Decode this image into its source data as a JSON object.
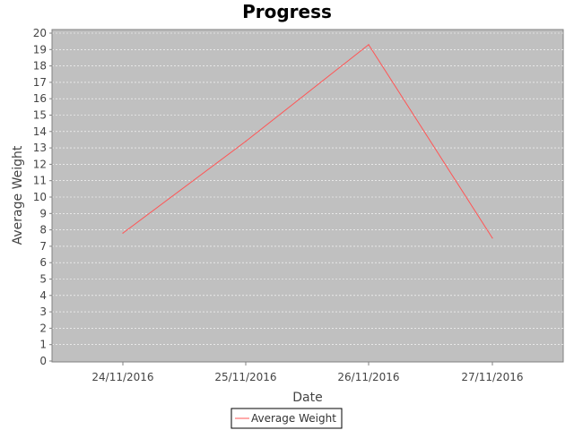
{
  "chart_data": {
    "type": "line",
    "title": "Progress",
    "xlabel": "Date",
    "ylabel": "Average Weight",
    "categories": [
      "24/11/2016",
      "25/11/2016",
      "26/11/2016",
      "27/11/2016"
    ],
    "series": [
      {
        "name": "Average Weight",
        "color": "#ff5555",
        "values": [
          7.8,
          13.4,
          19.3,
          7.5
        ]
      }
    ],
    "ylim": [
      0,
      20
    ],
    "yticks": [
      0,
      1,
      2,
      3,
      4,
      5,
      6,
      7,
      8,
      9,
      10,
      11,
      12,
      13,
      14,
      15,
      16,
      17,
      18,
      19,
      20
    ],
    "grid": true,
    "plot_background": "#c0c0c0",
    "legend_position": "bottom"
  }
}
